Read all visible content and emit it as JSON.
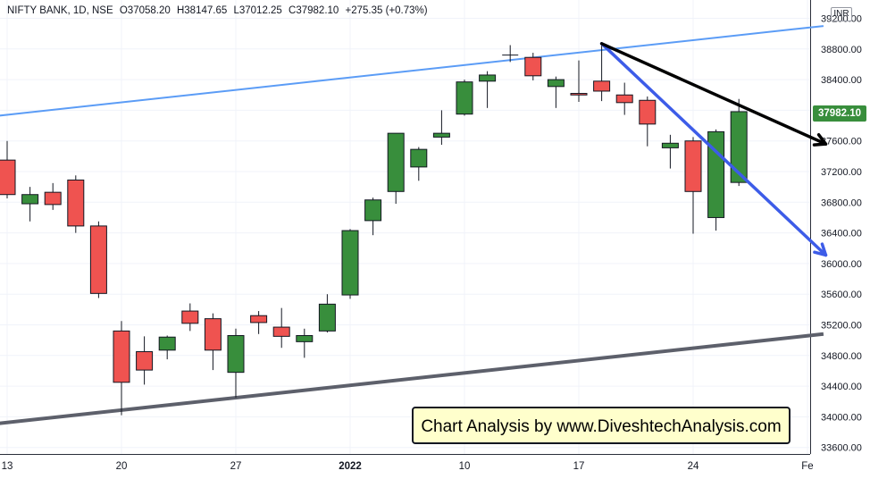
{
  "header": {
    "symbol": "NIFTY BANK, 1D, NSE",
    "open": "O37058.20",
    "high": "H38147.65",
    "low": "L37012.25",
    "close": "C37982.10",
    "change": "+275.35 (+0.73%)"
  },
  "currency": "INR",
  "last_price_label": "37982.10",
  "watermark": "Chart Analysis by www.DiveshtechAnalysis.com",
  "colors": {
    "up": "#388e3c",
    "down": "#ef5350",
    "trendline_light": "#5b9cf6",
    "trendline_dark": "#5d606b",
    "arrow_blue": "#3d5ce8",
    "arrow_black": "#000000",
    "grid": "#f0f3fa"
  },
  "chart_data": {
    "type": "candlestick",
    "y_axis": {
      "side": "right",
      "ticks": [
        33600,
        34000,
        34400,
        34800,
        35200,
        35600,
        36000,
        36400,
        36800,
        37200,
        37600,
        38000,
        38400,
        38800,
        39200
      ],
      "tick_labels": [
        "33600.00",
        "34000.00",
        "34400.00",
        "34800.00",
        "35200.00",
        "35600.00",
        "36000.00",
        "36400.00",
        "36800.00",
        "37200.00",
        "37600.00",
        "38000.00",
        "38400.00",
        "38800.00",
        "39200.00"
      ]
    },
    "x_axis": {
      "tick_labels": [
        {
          "label": "13",
          "index": 0
        },
        {
          "label": "20",
          "index": 5
        },
        {
          "label": "27",
          "index": 10
        },
        {
          "label": "2022",
          "index": 15
        },
        {
          "label": "10",
          "index": 20
        },
        {
          "label": "17",
          "index": 25
        },
        {
          "label": "24",
          "index": 30
        },
        {
          "label": "Fe",
          "index": 35
        }
      ]
    },
    "grid": true,
    "candles": [
      {
        "o": 37350,
        "h": 37600,
        "l": 36850,
        "c": 36900
      },
      {
        "o": 36780,
        "h": 37000,
        "l": 36550,
        "c": 36900
      },
      {
        "o": 36930,
        "h": 37050,
        "l": 36700,
        "c": 36770
      },
      {
        "o": 37090,
        "h": 37150,
        "l": 36400,
        "c": 36490
      },
      {
        "o": 36490,
        "h": 36550,
        "l": 35550,
        "c": 35610
      },
      {
        "o": 35120,
        "h": 35250,
        "l": 34020,
        "c": 34450
      },
      {
        "o": 34850,
        "h": 35050,
        "l": 34420,
        "c": 34610
      },
      {
        "o": 34870,
        "h": 35060,
        "l": 34750,
        "c": 35040
      },
      {
        "o": 35380,
        "h": 35480,
        "l": 35120,
        "c": 35220
      },
      {
        "o": 35280,
        "h": 35350,
        "l": 34610,
        "c": 34870
      },
      {
        "o": 34580,
        "h": 35150,
        "l": 34250,
        "c": 35060
      },
      {
        "o": 35320,
        "h": 35380,
        "l": 35080,
        "c": 35230
      },
      {
        "o": 35170,
        "h": 35420,
        "l": 34900,
        "c": 35050
      },
      {
        "o": 34980,
        "h": 35150,
        "l": 34770,
        "c": 35060
      },
      {
        "o": 35120,
        "h": 35600,
        "l": 35100,
        "c": 35470
      },
      {
        "o": 35590,
        "h": 36450,
        "l": 35540,
        "c": 36430
      },
      {
        "o": 36560,
        "h": 36860,
        "l": 36370,
        "c": 36830
      },
      {
        "o": 36940,
        "h": 37690,
        "l": 36780,
        "c": 37700
      },
      {
        "o": 37260,
        "h": 37520,
        "l": 37080,
        "c": 37490
      },
      {
        "o": 37650,
        "h": 38000,
        "l": 37550,
        "c": 37700
      },
      {
        "o": 37950,
        "h": 38400,
        "l": 37930,
        "c": 38370
      },
      {
        "o": 38380,
        "h": 38510,
        "l": 38030,
        "c": 38460
      },
      {
        "o": 38720,
        "h": 38850,
        "l": 38630,
        "c": 38720
      },
      {
        "o": 38690,
        "h": 38750,
        "l": 38390,
        "c": 38450
      },
      {
        "o": 38310,
        "h": 38440,
        "l": 38030,
        "c": 38400
      },
      {
        "o": 38220,
        "h": 38650,
        "l": 38110,
        "c": 38200
      },
      {
        "o": 38380,
        "h": 38850,
        "l": 38120,
        "c": 38250
      },
      {
        "o": 38200,
        "h": 38360,
        "l": 37940,
        "c": 38100
      },
      {
        "o": 38130,
        "h": 38180,
        "l": 37530,
        "c": 37820
      },
      {
        "o": 37510,
        "h": 37680,
        "l": 37240,
        "c": 37570
      },
      {
        "o": 37600,
        "h": 37650,
        "l": 36390,
        "c": 36940
      },
      {
        "o": 36600,
        "h": 37750,
        "l": 36430,
        "c": 37720
      },
      {
        "o": 37058.2,
        "h": 38147.65,
        "l": 37012.25,
        "c": 37982.1
      }
    ],
    "drawings": {
      "upper_channel": {
        "from": {
          "index": -0.5,
          "value": 37925
        },
        "to": {
          "index": 35.7,
          "value": 39100
        }
      },
      "lower_channel": {
        "from": {
          "index": -0.5,
          "value": 33910
        },
        "to": {
          "index": 35.7,
          "value": 35080
        }
      },
      "blue_arrow": {
        "from": {
          "index": 26,
          "value": 38870
        },
        "to": {
          "index": 35.8,
          "value": 36110
        }
      },
      "black_arrow": {
        "from": {
          "index": 26,
          "value": 38870
        },
        "to": {
          "index": 35.8,
          "value": 37560
        }
      }
    }
  }
}
